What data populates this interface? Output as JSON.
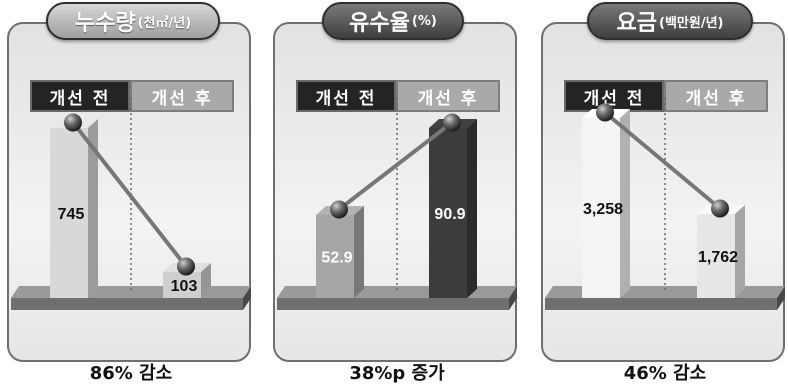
{
  "chart_data": [
    {
      "type": "bar",
      "title": "누수량",
      "unit": "(천㎥/년)",
      "categories": [
        "개선 전",
        "개선 후"
      ],
      "values": [
        745,
        103
      ],
      "value_labels": [
        "745",
        "103"
      ],
      "result": "86% 감소",
      "bar_colors": [
        "#d8d8d8",
        "#cfcfcf"
      ],
      "label_color": "#111111"
    },
    {
      "type": "bar",
      "title": "유수율",
      "unit": "(%)",
      "categories": [
        "개선 전",
        "개선 후"
      ],
      "values": [
        52.9,
        90.9
      ],
      "value_labels": [
        "52.9",
        "90.9"
      ],
      "result": "38%p 증가",
      "bar_colors": [
        "#a6a6a6",
        "#3c3c3c"
      ],
      "label_color": "#ffffff"
    },
    {
      "type": "bar",
      "title": "요금",
      "unit": "(백만원/년)",
      "categories": [
        "개선 전",
        "개선 후"
      ],
      "values": [
        3258,
        1762
      ],
      "value_labels": [
        "3,258",
        "1,762"
      ],
      "result": "46% 감소",
      "bar_colors": [
        "#f4f4f4",
        "#e6e6e6"
      ],
      "label_color": "#111111"
    }
  ]
}
